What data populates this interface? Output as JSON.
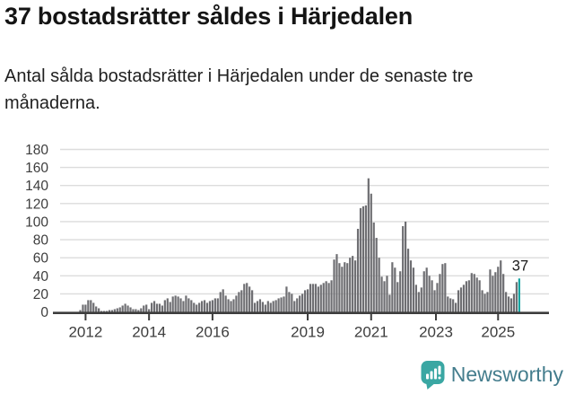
{
  "header": {
    "title": "37 bostadsrätter såldes i Härjedalen",
    "subtitle": "Antal sålda bostadsrätter i Härjedalen under de senaste tre månaderna."
  },
  "chart_data": {
    "type": "bar",
    "title": "37 bostadsrätter såldes i Härjedalen",
    "xlabel": "",
    "ylabel": "",
    "ylim": [
      0,
      180
    ],
    "yticks": [
      0,
      20,
      40,
      60,
      80,
      100,
      120,
      140,
      160,
      180
    ],
    "grid": true,
    "legend": false,
    "bar_color": "#6e6e72",
    "axis_color": "#3d3d3d",
    "grid_color": "#dcdcdc",
    "values": [
      2,
      8,
      8,
      13,
      13,
      10,
      6,
      4,
      1,
      1,
      1,
      2,
      2,
      3,
      4,
      5,
      7,
      9,
      7,
      5,
      3,
      3,
      2,
      4,
      7,
      8,
      3,
      10,
      12,
      9,
      9,
      7,
      13,
      15,
      11,
      17,
      18,
      17,
      15,
      12,
      18,
      15,
      13,
      10,
      8,
      10,
      12,
      13,
      10,
      12,
      13,
      15,
      15,
      22,
      25,
      18,
      14,
      12,
      14,
      18,
      22,
      24,
      31,
      32,
      28,
      24,
      10,
      12,
      14,
      11,
      8,
      12,
      10,
      12,
      13,
      15,
      16,
      17,
      28,
      22,
      20,
      12,
      15,
      18,
      20,
      24,
      25,
      31,
      31,
      31,
      28,
      30,
      32,
      34,
      32,
      35,
      58,
      64,
      54,
      50,
      55,
      54,
      60,
      62,
      57,
      92,
      115,
      117,
      118,
      148,
      131,
      99,
      82,
      60,
      39,
      34,
      40,
      19,
      55,
      49,
      33,
      45,
      95,
      100,
      70,
      57,
      49,
      30,
      22,
      27,
      45,
      49,
      40,
      35,
      24,
      32,
      42,
      53,
      54,
      17,
      15,
      14,
      10,
      24,
      27,
      30,
      34,
      35,
      43,
      42,
      38,
      35,
      24,
      20,
      22,
      47,
      40,
      44,
      50,
      57,
      42,
      22,
      17,
      15,
      20,
      33,
      37
    ],
    "year_ticks": [
      {
        "label": "2012",
        "index": 2
      },
      {
        "label": "2014",
        "index": 26
      },
      {
        "label": "2016",
        "index": 50
      },
      {
        "label": "2019",
        "index": 86
      },
      {
        "label": "2021",
        "index": 110
      },
      {
        "label": "2023",
        "index": 134.5
      },
      {
        "label": "2025",
        "index": 158
      }
    ],
    "highlight": {
      "index": 166,
      "value": 37,
      "label": "37",
      "color": "#16a3a0"
    }
  },
  "footer": {
    "brand": "Newsworthy",
    "brand_color": "#447d8d",
    "icon_color": "#3aa7a3",
    "icon_name": "newsworthy-logo-icon"
  }
}
